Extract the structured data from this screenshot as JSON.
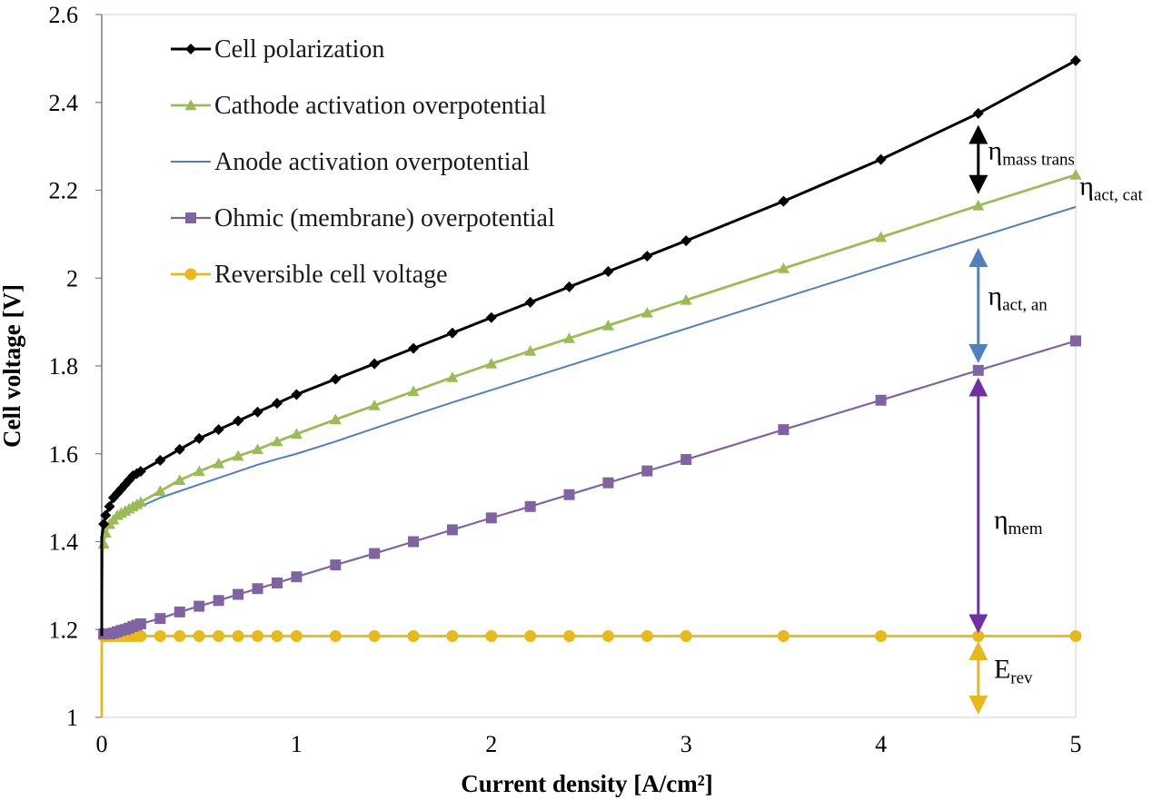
{
  "chart_data": {
    "type": "line",
    "title": "",
    "xlabel": "Current density [A/cm²]",
    "ylabel": "Cell voltage [V]",
    "xlim": [
      0,
      5
    ],
    "ylim": [
      1,
      2.6
    ],
    "x_ticks": [
      "0",
      "1",
      "2",
      "3",
      "4",
      "5"
    ],
    "y_ticks": [
      "1",
      "1.2",
      "1.4",
      "1.6",
      "1.8",
      "2",
      "2.2",
      "2.4",
      "2.6"
    ],
    "grid": false,
    "legend_position": "top-left",
    "series": [
      {
        "name": "Cell polarization",
        "color": "#000000",
        "marker": "diamond",
        "x": [
          0.01,
          0.02,
          0.04,
          0.06,
          0.08,
          0.1,
          0.12,
          0.14,
          0.16,
          0.18,
          0.2,
          0.3,
          0.4,
          0.5,
          0.6,
          0.7,
          0.8,
          0.9,
          1.0,
          1.2,
          1.4,
          1.6,
          1.8,
          2.0,
          2.2,
          2.4,
          2.6,
          2.8,
          3.0,
          3.5,
          4.0,
          4.5,
          5.0
        ],
        "y": [
          1.44,
          1.46,
          1.48,
          1.5,
          1.51,
          1.52,
          1.53,
          1.54,
          1.55,
          1.555,
          1.56,
          1.585,
          1.61,
          1.635,
          1.655,
          1.675,
          1.695,
          1.715,
          1.735,
          1.77,
          1.805,
          1.84,
          1.875,
          1.91,
          1.945,
          1.98,
          2.015,
          2.05,
          2.085,
          2.175,
          2.27,
          2.375,
          2.495
        ]
      },
      {
        "name": "Cathode activation overpotential",
        "color": "#9bbb59",
        "marker": "triangle",
        "x": [
          0.01,
          0.02,
          0.04,
          0.06,
          0.08,
          0.1,
          0.12,
          0.14,
          0.16,
          0.18,
          0.2,
          0.3,
          0.4,
          0.5,
          0.6,
          0.7,
          0.8,
          0.9,
          1.0,
          1.2,
          1.4,
          1.6,
          1.8,
          2.0,
          2.2,
          2.4,
          2.6,
          2.8,
          3.0,
          3.5,
          4.0,
          4.5,
          5.0
        ],
        "y": [
          1.395,
          1.42,
          1.44,
          1.45,
          1.46,
          1.465,
          1.47,
          1.475,
          1.48,
          1.485,
          1.49,
          1.515,
          1.54,
          1.56,
          1.578,
          1.595,
          1.61,
          1.628,
          1.645,
          1.678,
          1.71,
          1.742,
          1.774,
          1.805,
          1.834,
          1.863,
          1.892,
          1.921,
          1.95,
          2.022,
          2.093,
          2.165,
          2.235
        ]
      },
      {
        "name": "Anode activation overpotential",
        "color": "#4f81bd",
        "marker": "none",
        "x": [
          0.0,
          0.005,
          0.01,
          0.02,
          0.05,
          0.1,
          0.2,
          0.3,
          0.4,
          0.5,
          0.6,
          0.7,
          0.8,
          0.9,
          1.0,
          1.2,
          1.4,
          1.6,
          1.8,
          2.0,
          2.2,
          2.4,
          2.6,
          2.8,
          3.0,
          3.5,
          4.0,
          4.5,
          5.0
        ],
        "y": [
          1.185,
          1.39,
          1.41,
          1.425,
          1.445,
          1.46,
          1.48,
          1.5,
          1.515,
          1.53,
          1.545,
          1.56,
          1.575,
          1.588,
          1.6,
          1.628,
          1.658,
          1.688,
          1.717,
          1.745,
          1.773,
          1.801,
          1.829,
          1.857,
          1.885,
          1.955,
          2.025,
          2.093,
          2.162
        ]
      },
      {
        "name": "Ohmic (membrane) overpotential",
        "color": "#8064a2",
        "marker": "square",
        "x": [
          0.01,
          0.02,
          0.04,
          0.06,
          0.08,
          0.1,
          0.12,
          0.14,
          0.16,
          0.18,
          0.2,
          0.3,
          0.4,
          0.5,
          0.6,
          0.7,
          0.8,
          0.9,
          1.0,
          1.2,
          1.4,
          1.6,
          1.8,
          2.0,
          2.2,
          2.4,
          2.6,
          2.8,
          3.0,
          3.5,
          4.0,
          4.5,
          5.0
        ],
        "y": [
          1.19,
          1.19,
          1.19,
          1.192,
          1.195,
          1.198,
          1.2,
          1.203,
          1.207,
          1.21,
          1.213,
          1.225,
          1.24,
          1.253,
          1.266,
          1.28,
          1.293,
          1.306,
          1.32,
          1.347,
          1.373,
          1.4,
          1.427,
          1.454,
          1.48,
          1.507,
          1.534,
          1.561,
          1.587,
          1.655,
          1.722,
          1.79,
          1.857
        ]
      },
      {
        "name": "Reversible cell voltage",
        "color": "#e6b91e",
        "marker": "circle",
        "x": [
          0.01,
          0.02,
          0.04,
          0.06,
          0.08,
          0.1,
          0.12,
          0.14,
          0.16,
          0.18,
          0.2,
          0.3,
          0.4,
          0.5,
          0.6,
          0.7,
          0.8,
          0.9,
          1.0,
          1.2,
          1.4,
          1.6,
          1.8,
          2.0,
          2.2,
          2.4,
          2.6,
          2.8,
          3.0,
          3.5,
          4.0,
          4.5,
          5.0
        ],
        "y": [
          1.185,
          1.185,
          1.185,
          1.185,
          1.185,
          1.185,
          1.185,
          1.185,
          1.185,
          1.185,
          1.185,
          1.185,
          1.185,
          1.185,
          1.185,
          1.185,
          1.185,
          1.185,
          1.185,
          1.185,
          1.185,
          1.185,
          1.185,
          1.185,
          1.185,
          1.185,
          1.185,
          1.185,
          1.185,
          1.185,
          1.185,
          1.185,
          1.185
        ]
      }
    ],
    "annotations": [
      {
        "main": "η",
        "sub": "mass trans",
        "color": "#000000",
        "arrow_x": 4.5,
        "arrow_y": [
          2.2,
          2.34
        ],
        "text_at": [
          4.55,
          2.27
        ]
      },
      {
        "main": "η",
        "sub": "act, cat",
        "color": "#000000",
        "arrow_x": null,
        "arrow_y": null,
        "text_at": [
          5.02,
          2.19
        ]
      },
      {
        "main": "η",
        "sub": "act, an",
        "color": "#4f81bd",
        "arrow_x": 4.5,
        "arrow_y": [
          1.815,
          2.06
        ],
        "text_at": [
          4.55,
          1.94
        ]
      },
      {
        "main": "η",
        "sub": "mem",
        "color": "#7030a0",
        "arrow_x": 4.5,
        "arrow_y": [
          1.2,
          1.765
        ],
        "text_at": [
          4.58,
          1.43
        ]
      },
      {
        "main": "E",
        "sub": "rev",
        "color": "#e6b91e",
        "arrow_x": 4.5,
        "arrow_y": [
          1.015,
          1.165
        ],
        "text_at": [
          4.58,
          1.09
        ]
      }
    ]
  }
}
